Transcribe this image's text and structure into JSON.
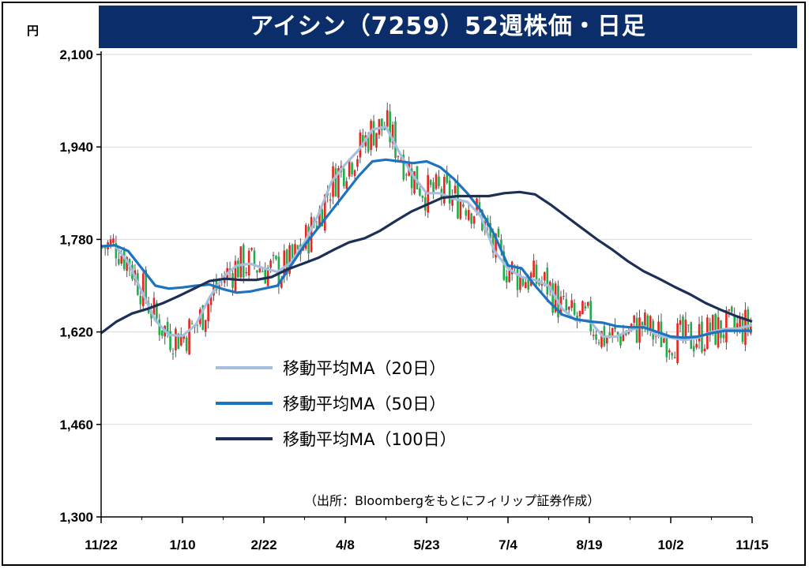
{
  "title": "アイシン（7259）52週株価・日足",
  "chart_data": {
    "type": "candlestick",
    "unit": "円",
    "ylim": [
      1300,
      2100
    ],
    "y_ticks": [
      "2,100",
      "1,940",
      "1,780",
      "1,620",
      "1,460",
      "1,300"
    ],
    "x_ticks": [
      "11/22",
      "1/10",
      "2/22",
      "4/8",
      "5/23",
      "7/4",
      "8/19",
      "10/2",
      "11/15"
    ],
    "grid": true,
    "legend_position": "center-left",
    "series": [
      {
        "name": "移動平均MA（20日）",
        "color": "#a7bfdf",
        "values": [
          1768,
          1770,
          1740,
          1690,
          1640,
          1615,
          1613,
          1633,
          1680,
          1715,
          1735,
          1738,
          1730,
          1724,
          1740,
          1775,
          1822,
          1880,
          1910,
          1935,
          1970,
          1975,
          1930,
          1890,
          1860,
          1860,
          1850,
          1845,
          1820,
          1760,
          1730,
          1715,
          1710,
          1700,
          1660,
          1640,
          1640,
          1612,
          1612,
          1623,
          1630,
          1614,
          1610,
          1606,
          1610,
          1620,
          1625,
          1626,
          1632
        ]
      },
      {
        "name": "移動平均MA（50日）",
        "color": "#1e73be",
        "values": [
          1768,
          1770,
          1760,
          1730,
          1700,
          1695,
          1697,
          1700,
          1702,
          1694,
          1688,
          1690,
          1695,
          1700,
          1735,
          1770,
          1800,
          1830,
          1860,
          1890,
          1915,
          1918,
          1915,
          1912,
          1915,
          1905,
          1885,
          1860,
          1830,
          1788,
          1735,
          1730,
          1700,
          1673,
          1650,
          1642,
          1638,
          1636,
          1630,
          1628,
          1628,
          1620,
          1612,
          1610,
          1612,
          1618,
          1622,
          1622,
          1622
        ]
      },
      {
        "name": "移動平均MA（100日）",
        "color": "#1c2f55",
        "values": [
          1618,
          1638,
          1652,
          1660,
          1670,
          1682,
          1695,
          1708,
          1712,
          1710,
          1710,
          1715,
          1728,
          1738,
          1748,
          1762,
          1775,
          1782,
          1795,
          1812,
          1828,
          1840,
          1852,
          1855,
          1855,
          1855,
          1860,
          1862,
          1858,
          1840,
          1820,
          1800,
          1780,
          1762,
          1742,
          1725,
          1712,
          1698,
          1685,
          1670,
          1658,
          1647,
          1638
        ]
      }
    ],
    "source": "（出所：Bloombergをもとにフィリップ証券作成）"
  }
}
